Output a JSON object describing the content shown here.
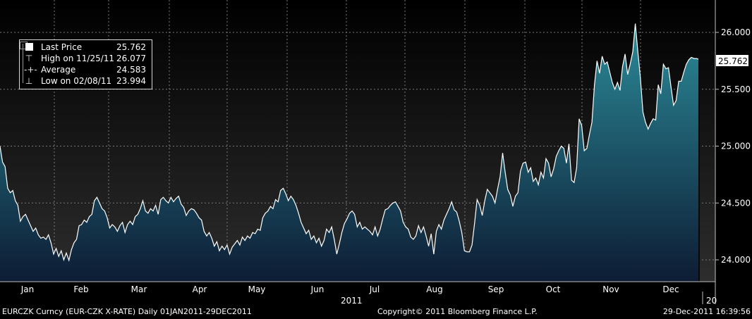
{
  "chart_data": {
    "type": "area",
    "ylim": [
      23.8,
      26.3
    ],
    "y_ticks": [
      24.0,
      24.5,
      25.0,
      25.5,
      26.0
    ],
    "y_tick_labels": [
      "24.000",
      "24.500",
      "25.000",
      "25.500",
      "26.000"
    ],
    "last_price_label": "25.762",
    "month_labels": [
      "Jan",
      "Feb",
      "Mar",
      "Apr",
      "May",
      "Jun",
      "Jul",
      "Aug",
      "Sep",
      "Oct",
      "Nov",
      "Dec"
    ],
    "year_label": "2011",
    "next_year_label": "20",
    "grid": true,
    "colors": {
      "line": "#ffffff",
      "fill_top": "#2b8b99",
      "fill_bottom": "#0d1c34",
      "grid": "#7a7a7a",
      "bg_top": "#000000",
      "bg_bottom": "#2d2d2d"
    },
    "series": [
      {
        "name": "Last Price",
        "values": [
          24.999,
          24.86,
          24.82,
          24.63,
          24.59,
          24.61,
          24.52,
          24.48,
          24.34,
          24.38,
          24.4,
          24.35,
          24.3,
          24.25,
          24.28,
          24.22,
          24.19,
          24.2,
          24.18,
          24.22,
          24.15,
          24.05,
          24.1,
          24.03,
          24.08,
          24.0,
          24.06,
          23.995,
          24.09,
          24.15,
          24.18,
          24.3,
          24.31,
          24.35,
          24.33,
          24.38,
          24.4,
          24.52,
          24.55,
          24.5,
          24.45,
          24.43,
          24.37,
          24.28,
          24.31,
          24.29,
          24.25,
          24.3,
          24.33,
          24.24,
          24.31,
          24.34,
          24.31,
          24.38,
          24.4,
          24.45,
          24.52,
          24.43,
          24.41,
          24.45,
          24.43,
          24.48,
          24.4,
          24.53,
          24.55,
          24.52,
          24.5,
          24.55,
          24.51,
          24.54,
          24.56,
          24.49,
          24.46,
          24.39,
          24.43,
          24.45,
          24.44,
          24.41,
          24.37,
          24.35,
          24.25,
          24.21,
          24.24,
          24.19,
          24.12,
          24.16,
          24.08,
          24.12,
          24.09,
          24.13,
          24.05,
          24.11,
          24.14,
          24.17,
          24.13,
          24.2,
          24.17,
          24.21,
          24.19,
          24.24,
          24.23,
          24.27,
          24.26,
          24.37,
          24.41,
          24.43,
          24.47,
          24.45,
          24.53,
          24.51,
          24.61,
          24.63,
          24.58,
          24.52,
          24.56,
          24.53,
          24.48,
          24.41,
          24.33,
          24.28,
          24.23,
          24.26,
          24.18,
          24.21,
          24.15,
          24.19,
          24.12,
          24.17,
          24.27,
          24.24,
          24.29,
          24.18,
          24.05,
          24.14,
          24.24,
          24.32,
          24.36,
          24.41,
          24.43,
          24.4,
          24.29,
          24.33,
          24.27,
          24.29,
          24.27,
          24.25,
          24.22,
          24.29,
          24.21,
          24.27,
          24.36,
          24.44,
          24.45,
          24.48,
          24.5,
          24.51,
          24.47,
          24.43,
          24.33,
          24.29,
          24.27,
          24.2,
          24.18,
          24.21,
          24.3,
          24.24,
          24.29,
          24.21,
          24.12,
          24.23,
          24.05,
          24.25,
          24.31,
          24.27,
          24.35,
          24.4,
          24.45,
          24.51,
          24.44,
          24.42,
          24.34,
          24.24,
          24.08,
          24.07,
          24.07,
          24.13,
          24.32,
          24.53,
          24.48,
          24.39,
          24.52,
          24.62,
          24.59,
          24.56,
          24.5,
          24.62,
          24.73,
          24.94,
          24.77,
          24.62,
          24.57,
          24.47,
          24.56,
          24.59,
          24.78,
          24.85,
          24.86,
          24.77,
          24.81,
          24.69,
          24.72,
          24.66,
          24.77,
          24.72,
          24.89,
          24.85,
          24.73,
          24.8,
          24.91,
          24.96,
          25.0,
          24.98,
          24.85,
          25.02,
          24.7,
          24.68,
          24.81,
          25.24,
          25.18,
          24.96,
          24.98,
          25.1,
          25.21,
          25.54,
          25.75,
          25.64,
          25.79,
          25.72,
          25.74,
          25.65,
          25.56,
          25.5,
          25.56,
          25.49,
          25.7,
          25.81,
          25.63,
          25.72,
          25.83,
          26.077,
          25.83,
          25.6,
          25.3,
          25.21,
          25.15,
          25.2,
          25.24,
          25.23,
          25.54,
          25.46,
          25.72,
          25.68,
          25.69,
          25.52,
          25.36,
          25.4,
          25.57,
          25.57,
          25.65,
          25.72,
          25.76,
          25.78,
          25.77,
          25.77,
          25.762
        ]
      }
    ]
  },
  "legend": {
    "last_price_label": "Last Price",
    "last_price_value": "25.762",
    "high_label": "High on 11/25/11",
    "high_value": "26.077",
    "average_label": "Average",
    "average_value": "24.583",
    "low_label": "Low on 02/08/11",
    "low_value": "23.994"
  },
  "footer": {
    "ticker": "EURCZK Curncy (EUR-CZK X-RATE)  Daily 01JAN2011-29DEC2011",
    "copyright": "Copyright© 2011 Bloomberg Finance L.P.",
    "timestamp": "29-Dec-2011 16:39:56"
  }
}
